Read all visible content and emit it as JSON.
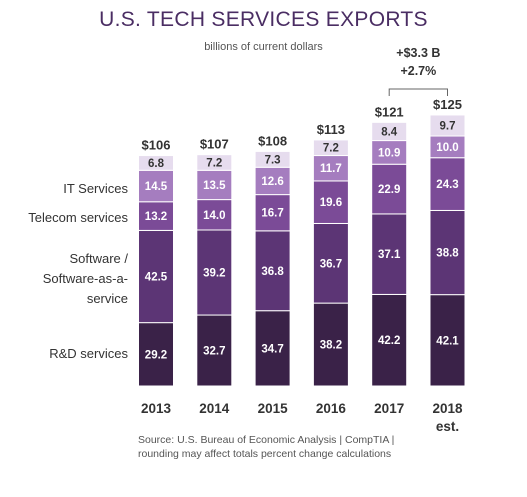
{
  "chart_data": {
    "type": "bar",
    "stacked": true,
    "title": "U.S. TECH SERVICES EXPORTS",
    "subtitle": "billions of current dollars",
    "categories": [
      "2013",
      "2014",
      "2015",
      "2016",
      "2017",
      "2018"
    ],
    "category_sublabels": [
      "",
      "",
      "",
      "",
      "",
      "est."
    ],
    "series": [
      {
        "name": "R&D services",
        "values": [
          29.2,
          32.7,
          34.7,
          38.2,
          42.2,
          42.1
        ],
        "color": "#3a2248",
        "label_color": "#ffffff"
      },
      {
        "name": "Software / Software-as-a-service",
        "values": [
          42.5,
          39.2,
          36.8,
          36.7,
          37.1,
          38.8
        ],
        "color": "#5c3575",
        "label_color": "#ffffff"
      },
      {
        "name": "Telecom services",
        "values": [
          13.2,
          14.0,
          16.7,
          19.6,
          22.9,
          24.3
        ],
        "color": "#7b4b97",
        "label_color": "#ffffff"
      },
      {
        "name": "IT Services",
        "values": [
          14.5,
          13.5,
          12.6,
          11.7,
          10.9,
          10.0
        ],
        "color": "#a57dbf",
        "label_color": "#ffffff"
      },
      {
        "name": "",
        "values": [
          6.8,
          7.2,
          7.3,
          7.2,
          8.4,
          9.7
        ],
        "color": "#e6dcee",
        "label_color": "#333333"
      }
    ],
    "series_labels": [
      "IT Services",
      "Telecom services",
      "Software /",
      "Software-as-a-",
      "service",
      "R&D services"
    ],
    "totals": [
      "$106",
      "$107",
      "$108",
      "$113",
      "$121",
      "$125"
    ],
    "annotation": {
      "line1": "+$3.3 B",
      "line2": "+2.7%"
    },
    "ylim": [
      0,
      125
    ]
  },
  "source": {
    "line1": "Source: U.S. Bureau of Economic Analysis | CompTIA |",
    "line2": "rounding may affect totals percent change calculations"
  }
}
